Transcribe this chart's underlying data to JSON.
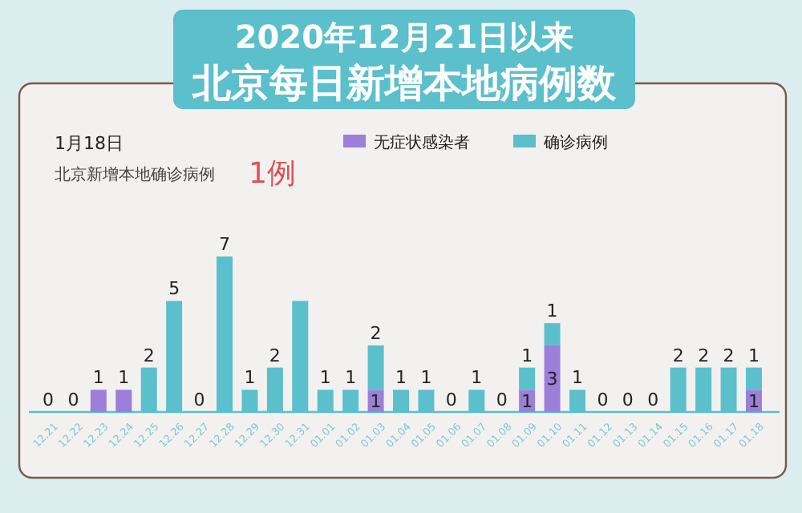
{
  "chart_data": {
    "type": "bar",
    "stacked": true,
    "title": "2020年12月21日以来",
    "subtitle": "北京每日新增本地病例数",
    "annotations": [
      "1月18日",
      "北京新增本地确诊病例",
      "1例"
    ],
    "legend": "top",
    "categories": [
      "12.21",
      "12.22",
      "12.23",
      "12.24",
      "12.25",
      "12.26",
      "12.27",
      "12.28",
      "12.29",
      "12.30",
      "12.31",
      "01.01",
      "01.02",
      "01.03",
      "01.04",
      "01.05",
      "01.06",
      "01.07",
      "01.08",
      "01.09",
      "01.10",
      "01.11",
      "01.12",
      "01.13",
      "01.14",
      "01.15",
      "01.16",
      "01.17",
      "01.18"
    ],
    "series": [
      {
        "name": "无症状感染者",
        "color": "#9b7fd8",
        "values": [
          0,
          0,
          1,
          1,
          0,
          0,
          0,
          0,
          0,
          0,
          0,
          0,
          0,
          1,
          0,
          0,
          0,
          0,
          0,
          1,
          3,
          0,
          0,
          0,
          0,
          0,
          0,
          0,
          1
        ],
        "value_labels": [
          null,
          null,
          "1",
          "1",
          null,
          null,
          null,
          null,
          null,
          null,
          null,
          null,
          null,
          "1",
          null,
          null,
          null,
          null,
          null,
          "1",
          "3",
          null,
          null,
          null,
          null,
          null,
          null,
          null,
          "1"
        ]
      },
      {
        "name": "确诊病例",
        "color": "#5bbfcc",
        "values": [
          0,
          0,
          0,
          0,
          2,
          5,
          0,
          7,
          1,
          2,
          5,
          1,
          1,
          2,
          1,
          1,
          0,
          1,
          0,
          1,
          1,
          1,
          0,
          0,
          0,
          2,
          2,
          2,
          1
        ],
        "value_labels": [
          "0",
          "0",
          null,
          null,
          "2",
          "5",
          "0",
          "7",
          "1",
          "2",
          null,
          "1",
          "1",
          "2",
          "1",
          "1",
          "0",
          "1",
          "0",
          "1",
          "1",
          "1",
          "0",
          "0",
          "0",
          "2",
          "2",
          "2",
          "1"
        ]
      }
    ]
  }
}
